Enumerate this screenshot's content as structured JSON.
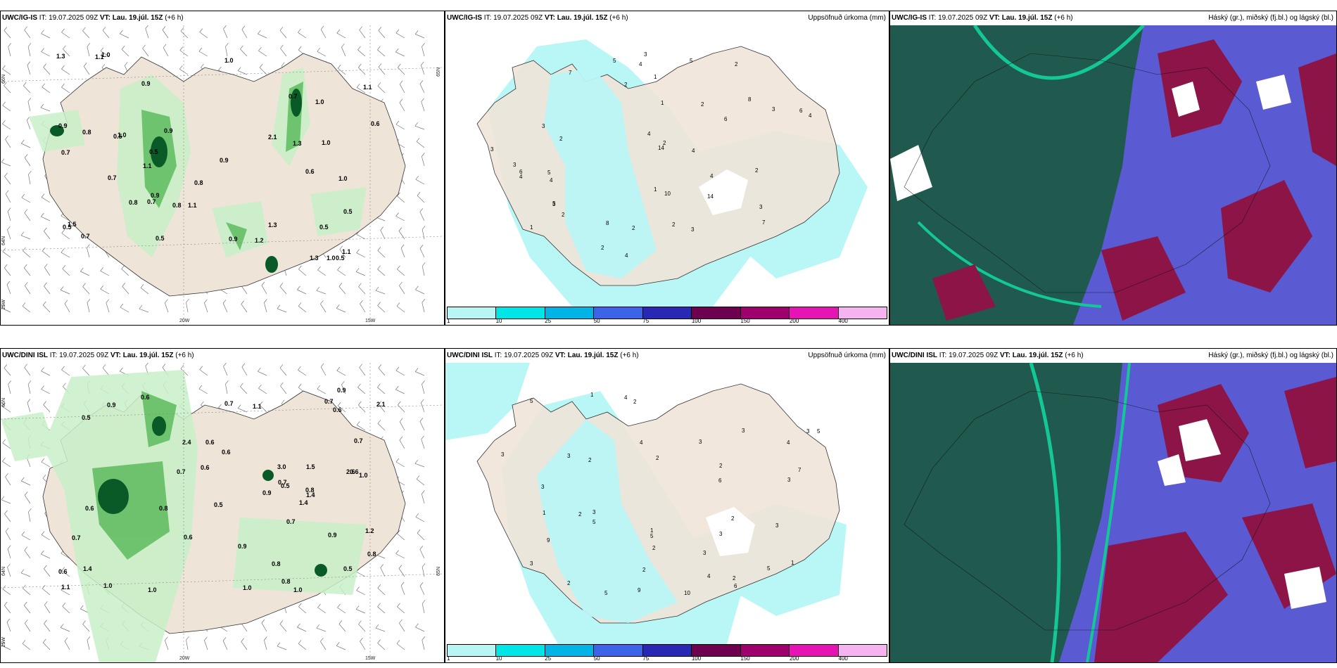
{
  "panels": [
    {
      "id": "p1",
      "title_model": "UWC/IG-IS",
      "title_it": "IT: 19.07.2025 09Z",
      "title_vt_label": "VT:",
      "title_vt": "Lau. 19.júl. 15Z",
      "title_lead": "(+6 h)",
      "right_title": "",
      "axis_labels": {
        "lon_a": "20W",
        "lon_b": "15W",
        "lat_a": "66N",
        "lat_b": "64N",
        "lat_c": "65N",
        "lat_d": "25W"
      },
      "values": [
        "0.8",
        "0.5",
        "1.1",
        "0.6",
        "0.5",
        "0.9",
        "1.1",
        "1.1",
        "0.7",
        "1.3",
        "1.0",
        "1.0",
        "1.3",
        "1.3",
        "0.5",
        "1.3",
        "0.9",
        "0.6",
        "1.1",
        "0.9",
        "1.0",
        "1.0",
        "1.2",
        "0.8",
        "0.5",
        "2.1",
        "0.9",
        "1.5",
        "1.0",
        "0.5",
        "0.9",
        "0.8",
        "0.7",
        "0.5",
        "0.7",
        "0.9",
        "0.8",
        "1.0",
        "0.7",
        "0.5",
        "0.7",
        "1.1",
        "1.0"
      ]
    },
    {
      "id": "p2",
      "title_model": "UWC/IG-IS",
      "title_it": "IT: 19.07.2025 09Z",
      "title_vt_label": "VT:",
      "title_vt": "Lau. 19.júl. 15Z",
      "title_lead": "(+6 h)",
      "right_title": "Uppsöfnuð úrkoma (mm)",
      "values": [
        "1",
        "2",
        "7",
        "8",
        "10",
        "2",
        "4",
        "5",
        "3",
        "6",
        "3",
        "3",
        "14",
        "14",
        "4",
        "5",
        "7",
        "3",
        "3",
        "2",
        "3",
        "4",
        "2",
        "2",
        "4",
        "8",
        "6",
        "5",
        "1",
        "4",
        "3",
        "2",
        "2",
        "1",
        "3",
        "4",
        "6",
        "4",
        "2",
        "2",
        "4",
        "1",
        "2",
        "5"
      ]
    },
    {
      "id": "p3",
      "title_model": "UWC/IG-IS",
      "title_it": "IT: 19.07.2025 09Z",
      "title_vt_label": "VT:",
      "title_vt": "Lau. 19.júl. 15Z",
      "title_lead": "(+6 h)",
      "right_title": "Háský (gr.), miðský (fj.bl.) og lágský (bl.)"
    },
    {
      "id": "p4",
      "title_model": "UWC/DINI ISL",
      "title_it": "IT: 19.07.2025 09Z",
      "title_vt_label": "VT:",
      "title_vt": "Lau. 19.júl. 15Z",
      "title_lead": "(+6 h)",
      "right_title": "",
      "axis_labels": {
        "lon_a": "20W",
        "lon_b": "15W",
        "lat_a": "66N",
        "lat_b": "64N",
        "lat_c": "65N",
        "lat_d": "25W"
      },
      "values": [
        "0.6",
        "1.5",
        "2.4",
        "1.4",
        "0.7",
        "1.1",
        "3.0",
        "2.1",
        "0.6",
        "1.1",
        "0.9",
        "1.0",
        "0.9",
        "1.0",
        "1.0",
        "0.8",
        "0.7",
        "0.7",
        "0.8",
        "0.6",
        "0.6",
        "2.6",
        "1.2",
        "0.6",
        "1.4",
        "0.7",
        "1.0",
        "0.9",
        "0.7",
        "0.6",
        "0.9",
        "0.5",
        "0.6",
        "0.7",
        "0.8",
        "0.9",
        "0.7",
        "0.6",
        "0.5",
        "0.8",
        "1.0",
        "0.5",
        "0.6",
        "1.4",
        "0.5",
        "0.8"
      ]
    },
    {
      "id": "p5",
      "title_model": "UWC/DINI ISL",
      "title_it": "IT: 19.07.2025 09Z",
      "title_vt_label": "VT:",
      "title_vt": "Lau. 19.júl. 15Z",
      "title_lead": "(+6 h)",
      "right_title": "Uppsöfnuð úrkoma (mm)",
      "values": [
        "3",
        "1",
        "2",
        "3",
        "2",
        "5",
        "4",
        "4",
        "9",
        "10",
        "5",
        "2",
        "1",
        "4",
        "6",
        "5",
        "3",
        "3",
        "7",
        "2",
        "3",
        "5",
        "6",
        "3",
        "2",
        "4",
        "2",
        "9",
        "3",
        "2",
        "2",
        "2",
        "3",
        "2",
        "3",
        "3",
        "5",
        "1",
        "3",
        "1",
        "3",
        "5"
      ]
    },
    {
      "id": "p6",
      "title_model": "UWC/DINI ISL",
      "title_it": "IT: 19.07.2025 09Z",
      "title_vt_label": "VT:",
      "title_vt": "Lau. 19.júl. 15Z",
      "title_lead": "(+6 h)",
      "right_title": "Háský (gr.), miðský (fj.bl.) og lágský (bl.)"
    }
  ],
  "legend": {
    "colors": [
      "#b8f5f5",
      "#00e5e5",
      "#00b4e6",
      "#3c64e6",
      "#2828b4",
      "#6e0050",
      "#a0006e",
      "#e614b4",
      "#f5b4f0"
    ],
    "ticks": [
      "1",
      "10",
      "25",
      "50",
      "75",
      "100",
      "150",
      "200",
      "400"
    ]
  },
  "colors": {
    "land": "#efe4d8",
    "precip_light": "#c8f0c8",
    "precip_mid": "#64be64",
    "precip_dark": "#0a5a28",
    "rain_fill": "#b9f6f6",
    "cloud_bg": "#5a5ad2",
    "cloud_high": "#1e5a46",
    "cloud_mid": "#8c1446",
    "cloud_teal": "#14c896"
  }
}
